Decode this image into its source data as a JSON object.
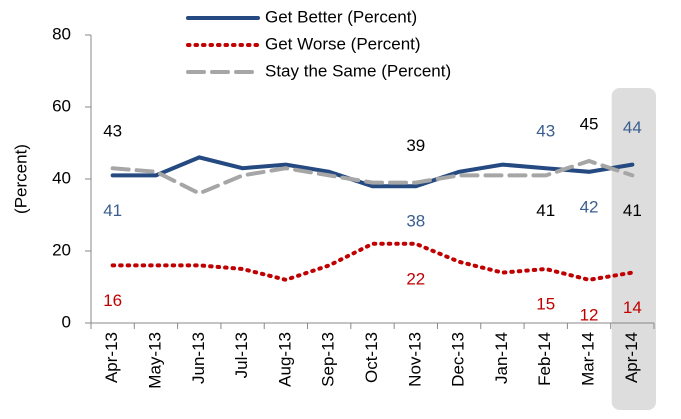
{
  "chart_data": {
    "type": "line",
    "y_label": "(Percent)",
    "categories": [
      "Apr-13",
      "May-13",
      "Jun-13",
      "Jul-13",
      "Aug-13",
      "Sep-13",
      "Oct-13",
      "Nov-13",
      "Dec-13",
      "Jan-14",
      "Feb-14",
      "Mar-14",
      "Apr-14"
    ],
    "series": [
      {
        "name": "Get Better (Percent)",
        "color": "#254a82",
        "label_color": "#3a5f8f",
        "dash": "solid",
        "values": [
          41,
          41,
          46,
          43,
          44,
          42,
          38,
          38,
          42,
          44,
          43,
          42,
          44
        ],
        "value_labels": [
          "41",
          null,
          null,
          null,
          null,
          null,
          null,
          "38",
          null,
          null,
          "43",
          "42",
          "44"
        ]
      },
      {
        "name": "Get Worse (Percent)",
        "color": "#c00000",
        "label_color": "#c00000",
        "dash": "dotted",
        "values": [
          16,
          16,
          16,
          15,
          12,
          16,
          22,
          22,
          17,
          14,
          15,
          12,
          14
        ],
        "value_labels": [
          "16",
          null,
          null,
          null,
          null,
          null,
          null,
          "22",
          null,
          null,
          "15",
          "12",
          "14"
        ]
      },
      {
        "name": "Stay the Same (Percent)",
        "color": "#a6a6a6",
        "label_color": "#000000",
        "dash": "dashed",
        "values": [
          43,
          42,
          36,
          41,
          43,
          41,
          39,
          39,
          41,
          41,
          41,
          45,
          41
        ],
        "value_labels": [
          "43",
          null,
          null,
          null,
          null,
          null,
          null,
          "39",
          null,
          null,
          "41",
          "45",
          "41"
        ]
      }
    ],
    "ylim": [
      0,
      80
    ],
    "yticks": [
      0,
      20,
      40,
      60,
      80
    ],
    "grid": false
  }
}
